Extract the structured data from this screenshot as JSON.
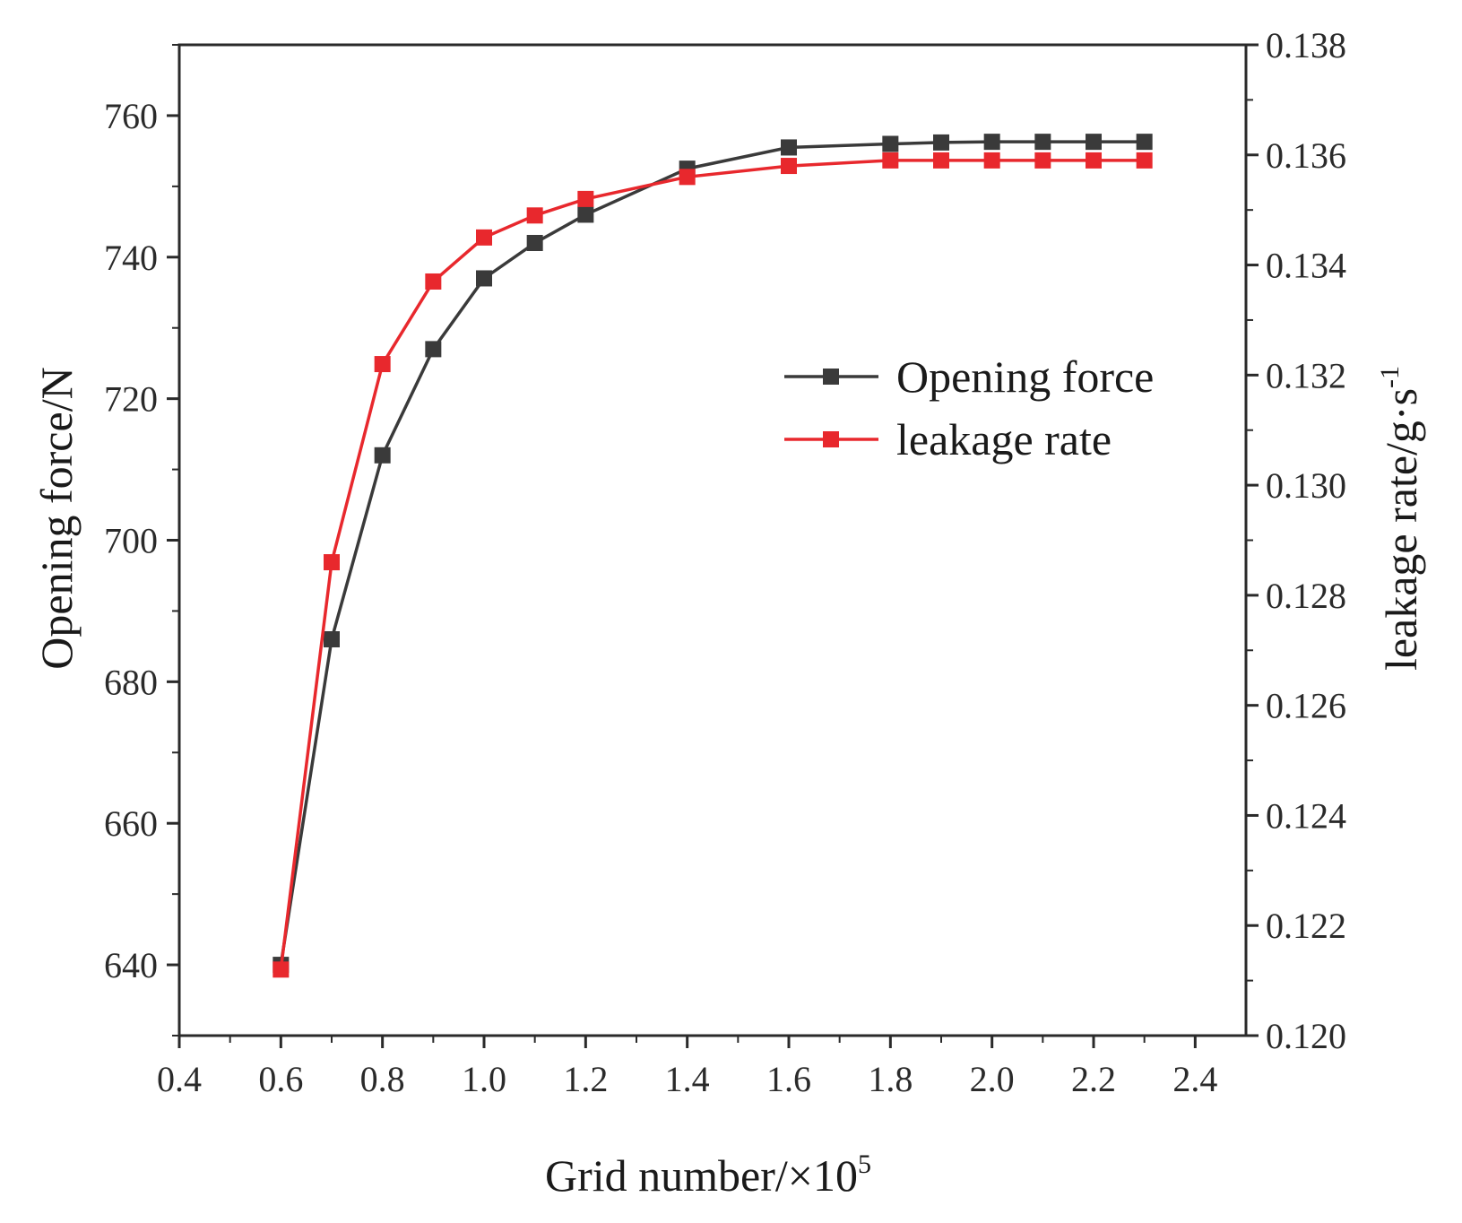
{
  "chart_data": {
    "type": "line",
    "xlabel": "Grid number/×10",
    "xlabel_sup": "5",
    "ylabel_left": "Opening force/N",
    "ylabel_right": "leakage rate/g·s",
    "ylabel_right_sup": "-1",
    "xlim": [
      0.4,
      2.5
    ],
    "ylim_left": [
      630,
      770
    ],
    "ylim_right": [
      0.12,
      0.138
    ],
    "x_ticks": [
      "0.4",
      "0.6",
      "0.8",
      "1.0",
      "1.2",
      "1.4",
      "1.6",
      "1.8",
      "2.0",
      "2.2",
      "2.4"
    ],
    "y_left_ticks": [
      "640",
      "660",
      "680",
      "700",
      "720",
      "740",
      "760"
    ],
    "y_right_ticks": [
      "0.120",
      "0.122",
      "0.124",
      "0.126",
      "0.128",
      "0.130",
      "0.132",
      "0.134",
      "0.136",
      "0.138"
    ],
    "grid": false,
    "legend_position": "center-right",
    "series": [
      {
        "name": "Opening force",
        "axis": "left",
        "color": "#3a3a3a",
        "x": [
          0.6,
          0.7,
          0.8,
          0.9,
          1.0,
          1.1,
          1.2,
          1.4,
          1.6,
          1.8,
          1.9,
          2.0,
          2.1,
          2.2,
          2.3
        ],
        "y": [
          640,
          686,
          712,
          727,
          737,
          742,
          746,
          752.5,
          755.5,
          756,
          756.2,
          756.3,
          756.3,
          756.3,
          756.3
        ]
      },
      {
        "name": "leakage rate",
        "axis": "right",
        "color": "#e8282d",
        "x": [
          0.6,
          0.7,
          0.8,
          0.9,
          1.0,
          1.1,
          1.2,
          1.4,
          1.6,
          1.8,
          1.9,
          2.0,
          2.1,
          2.2,
          2.3
        ],
        "y": [
          0.1212,
          0.1286,
          0.1322,
          0.1337,
          0.1345,
          0.1349,
          0.1352,
          0.1356,
          0.1358,
          0.1359,
          0.1359,
          0.1359,
          0.1359,
          0.1359,
          0.1359
        ]
      }
    ]
  }
}
